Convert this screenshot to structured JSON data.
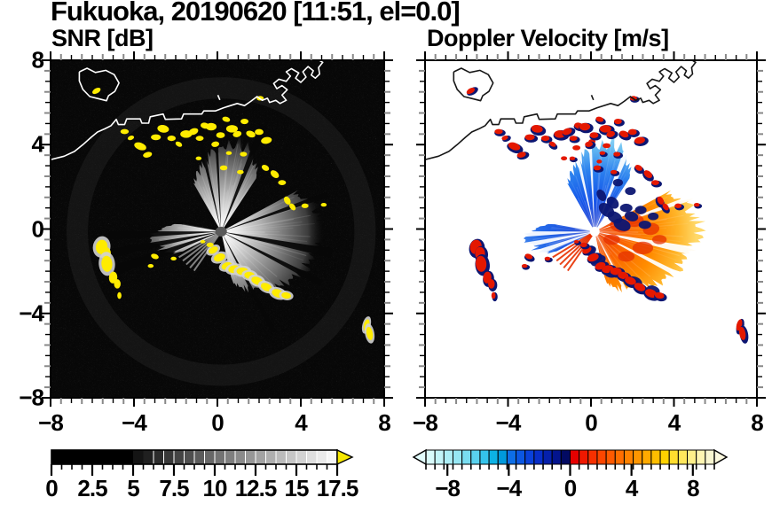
{
  "title": "Fukuoka, 20190620 [11:51, el=0.0]",
  "panels": {
    "left": {
      "title": "SNR [dB]"
    },
    "right": {
      "title": "Doppler Velocity [m/s]"
    }
  },
  "axes": {
    "xlim": [
      -8,
      8
    ],
    "ylim": [
      -8,
      8
    ],
    "major_values": [
      -8,
      -4,
      0,
      4,
      8
    ],
    "x_tick_labels": [
      "−8",
      "−4",
      "0",
      "4",
      "8"
    ],
    "y_values": [
      8,
      4,
      0,
      -4,
      -8
    ],
    "y_tick_labels": [
      "8",
      "4",
      "0",
      "−4",
      "−8"
    ],
    "minor_step": 0.5
  },
  "colorbars": {
    "snr": {
      "min": 0,
      "max": 17.5,
      "segments": 28,
      "black_until": 5,
      "tick_values": [
        0,
        2.5,
        5,
        7.5,
        10,
        12.5,
        15,
        17.5
      ],
      "tick_labels": [
        "0",
        "2.5",
        "5",
        "7.5",
        "10",
        "12.5",
        "15",
        "17.5"
      ],
      "over_color": "#f6e800"
    },
    "vel": {
      "min": -9.4,
      "max": 9.4,
      "segments": 32,
      "tick_values": [
        -8,
        -4,
        0,
        4,
        8
      ],
      "tick_labels": [
        "−8",
        "−4",
        "0",
        "4",
        "8"
      ],
      "under_color": "#e2fdfd",
      "over_color": "#fcf9df",
      "colors": [
        "#d9fbfb",
        "#c3f4f8",
        "#adeef6",
        "#96e7f4",
        "#79ddf1",
        "#59d1ee",
        "#34c3ea",
        "#0cb2e5",
        "#0099dc",
        "#0d6ee6",
        "#0b57e2",
        "#0941da",
        "#072ec9",
        "#0520ac",
        "#03148e",
        "#020a62",
        "#e60000",
        "#ef1800",
        "#f73000",
        "#fc4600",
        "#ff5a00",
        "#ff6e00",
        "#ff8200",
        "#ff9600",
        "#ffaa00",
        "#ffbe00",
        "#ffd200",
        "#ffdd2e",
        "#ffe75c",
        "#ffef8a",
        "#fff5b2",
        "#f9f6d0"
      ]
    }
  },
  "colors": {
    "snr_bg": "#070707",
    "vel_bg": "#ffffff",
    "snr_coast": "#ffffff",
    "vel_coast": "#161616",
    "echo_yellow": "#ffec00",
    "echo_halo": "#d2d2d2",
    "vel_echo_red": "#e41800",
    "vel_echo_navy": "#0c1672",
    "vel_ray_red": "#e83000",
    "snr_ray_gray": "#8e8e8e",
    "snr_center": "#5a5a5a"
  },
  "chart_data": {
    "type": "heatmap",
    "title": "Fukuoka, 20190620 [11:51, el=0.0]",
    "panels": [
      {
        "name": "SNR [dB]",
        "value_range": [
          0,
          17.5
        ],
        "scheme": "black-to-white, over-range yellow"
      },
      {
        "name": "Doppler Velocity [m/s]",
        "value_range": [
          -9.4,
          9.4
        ],
        "scheme": "cyan-blue negative, red-yellow positive"
      }
    ],
    "xlim": [
      -8,
      8
    ],
    "ylim": [
      -8,
      8
    ],
    "radar_center": [
      0.18,
      -0.12
    ],
    "coastline": [
      [
        -8.15,
        3.25
      ],
      [
        -7.35,
        3.45
      ],
      [
        -6.85,
        3.68
      ],
      [
        -6.45,
        4.0
      ],
      [
        -6.05,
        4.35
      ],
      [
        -5.75,
        4.6
      ],
      [
        -5.4,
        4.75
      ],
      [
        -5.1,
        4.9
      ],
      [
        -4.85,
        5.2
      ],
      [
        -4.75,
        4.95
      ],
      [
        -4.45,
        4.95
      ],
      [
        -4.35,
        5.22
      ],
      [
        -3.7,
        5.22
      ],
      [
        -3.62,
        5.02
      ],
      [
        -3.3,
        5.02
      ],
      [
        -3.22,
        5.32
      ],
      [
        -2.6,
        5.45
      ],
      [
        -2.5,
        5.2
      ],
      [
        -1.72,
        5.22
      ],
      [
        -1.62,
        5.45
      ],
      [
        -0.75,
        5.45
      ],
      [
        -0.65,
        5.6
      ],
      [
        -0.1,
        5.6
      ],
      [
        0.3,
        5.75
      ],
      [
        0.95,
        5.95
      ],
      [
        1.3,
        5.85
      ],
      [
        1.6,
        6.05
      ],
      [
        1.9,
        6.28
      ],
      [
        2.15,
        6.1
      ],
      [
        2.4,
        6.2
      ],
      [
        2.5,
        6.0
      ],
      [
        2.8,
        6.1
      ],
      [
        3.0,
        5.95
      ],
      [
        3.3,
        6.1
      ],
      [
        3.1,
        6.35
      ],
      [
        3.35,
        6.6
      ],
      [
        3.1,
        6.8
      ],
      [
        2.85,
        6.65
      ],
      [
        2.7,
        6.9
      ],
      [
        2.95,
        7.1
      ],
      [
        3.3,
        7.0
      ],
      [
        3.5,
        7.25
      ],
      [
        3.3,
        7.45
      ],
      [
        3.55,
        7.6
      ],
      [
        3.9,
        7.4
      ],
      [
        3.75,
        7.15
      ],
      [
        4.0,
        6.95
      ],
      [
        4.25,
        7.2
      ],
      [
        4.1,
        7.45
      ],
      [
        4.35,
        7.7
      ],
      [
        4.6,
        7.5
      ],
      [
        4.5,
        7.3
      ],
      [
        4.7,
        7.15
      ],
      [
        4.9,
        7.35
      ],
      [
        4.85,
        7.65
      ],
      [
        5.05,
        7.9
      ],
      [
        4.8,
        8.05
      ],
      [
        4.85,
        8.3
      ]
    ],
    "island": [
      [
        -6.62,
        7.45
      ],
      [
        -6.25,
        7.62
      ],
      [
        -5.85,
        7.42
      ],
      [
        -5.35,
        7.52
      ],
      [
        -4.95,
        7.32
      ],
      [
        -4.72,
        6.92
      ],
      [
        -4.92,
        6.52
      ],
      [
        -5.22,
        6.32
      ],
      [
        -5.32,
        6.08
      ],
      [
        -5.72,
        6.18
      ],
      [
        -6.12,
        6.28
      ],
      [
        -6.45,
        6.62
      ],
      [
        -6.62,
        7.02
      ],
      [
        -6.62,
        7.45
      ]
    ],
    "speck": [
      [
        0.02,
        6.35
      ],
      [
        0.12,
        6.12
      ]
    ],
    "fans": [
      {
        "name": "north",
        "az0": -30,
        "az1": 34,
        "env": [
          [
            -30,
            2.6
          ],
          [
            -18,
            3.2
          ],
          [
            -5,
            3.8
          ],
          [
            8,
            4.35
          ],
          [
            20,
            4.3
          ],
          [
            28,
            3.6
          ],
          [
            34,
            2.8
          ]
        ],
        "vel_palette": "north"
      },
      {
        "name": "east-southeast",
        "az0": 62,
        "az1": 168,
        "env": [
          [
            62,
            4.2
          ],
          [
            75,
            4.9
          ],
          [
            88,
            5.1
          ],
          [
            100,
            4.6
          ],
          [
            115,
            4.3
          ],
          [
            130,
            3.9
          ],
          [
            145,
            3.3
          ],
          [
            158,
            2.9
          ],
          [
            168,
            2.4
          ]
        ],
        "vel_palette": "se"
      },
      {
        "name": "west",
        "az0": 243,
        "az1": 281,
        "env": [
          [
            243,
            2.2
          ],
          [
            252,
            2.9
          ],
          [
            262,
            3.3
          ],
          [
            270,
            3.2
          ],
          [
            276,
            2.6
          ],
          [
            281,
            2.0
          ]
        ],
        "vel_palette": "west"
      }
    ],
    "thin_rays": {
      "az_list": [
        215,
        221,
        227,
        233,
        239
      ],
      "r": 2.5
    },
    "shadows": [
      {
        "az": -13,
        "w": 1.3
      },
      {
        "az": -3,
        "w": 1.0
      },
      {
        "az": 22,
        "w": 2.0
      },
      {
        "az": 71,
        "w": 1.4
      },
      {
        "az": 101,
        "w": 2.4
      },
      {
        "az": 117,
        "w": 1.6
      },
      {
        "az": 152,
        "w": 1.4
      },
      {
        "az": 250,
        "w": 2.6
      },
      {
        "az": 259,
        "w": 2.2
      },
      {
        "az": 268,
        "w": 2.2
      }
    ],
    "fan_palettes": {
      "snr": {
        "stops": [
          "#ffffff",
          "#e8e8e8",
          "#b4b4b4",
          "#787878",
          "#3c3c3c",
          "#141414"
        ],
        "offs": [
          0,
          0.15,
          0.38,
          0.62,
          0.85,
          1
        ]
      },
      "north": {
        "stops": [
          "#0a28c8",
          "#1150e8",
          "#2b80ee",
          "#6cc0f2",
          "#a6e2f8"
        ],
        "offs": [
          0,
          0.3,
          0.6,
          0.85,
          1
        ]
      },
      "se": {
        "stops": [
          "#ee3c00",
          "#fa6400",
          "#ff8c00",
          "#ffb428",
          "#ffd868"
        ],
        "offs": [
          0,
          0.3,
          0.6,
          0.82,
          1
        ]
      },
      "west": {
        "stops": [
          "#0a30d0",
          "#2468e8",
          "#5aa0f0"
        ],
        "offs": [
          0,
          0.5,
          1
        ]
      }
    },
    "echo_blobs": [
      [
        -5.8,
        6.55,
        0.22,
        0.12,
        -30,
        0
      ],
      [
        -4.45,
        4.62,
        0.2,
        0.12,
        0,
        0
      ],
      [
        -4.15,
        4.32,
        0.16,
        0.1,
        -20,
        0
      ],
      [
        -3.7,
        3.92,
        0.3,
        0.17,
        20,
        0
      ],
      [
        -3.35,
        3.52,
        0.22,
        0.13,
        -15,
        0
      ],
      [
        -2.95,
        4.35,
        0.24,
        0.14,
        0,
        0
      ],
      [
        -2.6,
        4.75,
        0.28,
        0.18,
        10,
        0
      ],
      [
        -2.2,
        4.3,
        0.2,
        0.13,
        0,
        0
      ],
      [
        -1.85,
        4.02,
        0.17,
        0.11,
        30,
        0
      ],
      [
        -1.5,
        4.5,
        0.28,
        0.18,
        0,
        0
      ],
      [
        -1.15,
        4.62,
        0.24,
        0.15,
        -20,
        0
      ],
      [
        -0.85,
        4.3,
        0.19,
        0.12,
        0,
        0
      ],
      [
        -0.9,
        3.35,
        0.14,
        0.09,
        0,
        0
      ],
      [
        -0.6,
        4.9,
        0.21,
        0.14,
        10,
        0
      ],
      [
        -0.3,
        4.85,
        0.26,
        0.18,
        0,
        0
      ],
      [
        -0.1,
        4.02,
        0.19,
        0.13,
        -10,
        0
      ],
      [
        0.15,
        4.45,
        0.21,
        0.14,
        0,
        0
      ],
      [
        0.42,
        5.2,
        0.19,
        0.12,
        15,
        0
      ],
      [
        0.55,
        3.6,
        0.14,
        0.09,
        0,
        0
      ],
      [
        0.7,
        4.75,
        0.28,
        0.18,
        0,
        0
      ],
      [
        0.95,
        4.5,
        0.21,
        0.14,
        -15,
        0
      ],
      [
        1.25,
        3.55,
        0.17,
        0.11,
        0,
        0
      ],
      [
        1.3,
        5.1,
        0.19,
        0.13,
        0,
        0
      ],
      [
        1.6,
        4.5,
        0.23,
        0.15,
        20,
        0
      ],
      [
        2.0,
        4.6,
        0.21,
        0.14,
        0,
        0
      ],
      [
        2.05,
        6.2,
        0.17,
        0.11,
        0,
        0
      ],
      [
        2.35,
        4.2,
        0.26,
        0.16,
        -10,
        0
      ],
      [
        0.3,
        2.9,
        0.18,
        0.12,
        0,
        0
      ],
      [
        1.1,
        2.7,
        0.16,
        0.1,
        0,
        0
      ],
      [
        2.3,
        2.9,
        0.19,
        0.13,
        30,
        0
      ],
      [
        2.75,
        2.6,
        0.23,
        0.15,
        40,
        0
      ],
      [
        3.1,
        2.2,
        0.19,
        0.12,
        0,
        0
      ],
      [
        3.35,
        1.35,
        0.21,
        0.14,
        60,
        0
      ],
      [
        3.6,
        1.05,
        0.19,
        0.12,
        50,
        0
      ],
      [
        4.2,
        1.1,
        0.17,
        0.11,
        0,
        0
      ],
      [
        5.1,
        1.15,
        0.14,
        0.09,
        0,
        0
      ],
      [
        -0.2,
        -1.0,
        0.24,
        0.15,
        -30,
        1
      ],
      [
        0.1,
        -1.35,
        0.28,
        0.18,
        -20,
        1
      ],
      [
        0.45,
        -1.75,
        0.26,
        0.17,
        -20,
        1
      ],
      [
        0.8,
        -1.9,
        0.28,
        0.18,
        -10,
        1
      ],
      [
        1.2,
        -2.0,
        0.28,
        0.18,
        0,
        1
      ],
      [
        1.55,
        -2.2,
        0.26,
        0.17,
        10,
        1
      ],
      [
        1.9,
        -2.45,
        0.28,
        0.18,
        20,
        1
      ],
      [
        2.35,
        -2.75,
        0.28,
        0.18,
        25,
        1
      ],
      [
        2.9,
        -3.05,
        0.3,
        0.19,
        20,
        1
      ],
      [
        3.3,
        -3.15,
        0.23,
        0.15,
        10,
        1
      ],
      [
        -0.35,
        -0.75,
        0.17,
        0.11,
        0,
        0
      ],
      [
        -0.7,
        -0.6,
        0.12,
        0.08,
        0,
        0
      ],
      [
        -2.1,
        -1.4,
        0.14,
        0.09,
        0,
        0
      ],
      [
        -3.0,
        -1.3,
        0.19,
        0.12,
        20,
        0
      ],
      [
        -3.2,
        -1.75,
        0.14,
        0.09,
        0,
        0
      ],
      [
        -5.55,
        -0.85,
        0.28,
        0.34,
        10,
        1
      ],
      [
        -5.35,
        -1.15,
        0.24,
        0.3,
        0,
        0
      ],
      [
        -5.3,
        -1.65,
        0.26,
        0.38,
        -5,
        1
      ],
      [
        -5.0,
        -2.3,
        0.2,
        0.28,
        5,
        0
      ],
      [
        -4.8,
        -2.6,
        0.16,
        0.22,
        0,
        0
      ],
      [
        -4.7,
        -3.15,
        0.1,
        0.16,
        0,
        0
      ],
      [
        7.15,
        -4.55,
        0.13,
        0.28,
        15,
        1
      ],
      [
        7.3,
        -4.95,
        0.15,
        0.32,
        -10,
        1
      ]
    ],
    "alias_patches": [
      [
        0.75,
        0.9,
        0.42,
        0.28,
        40
      ],
      [
        1.15,
        0.55,
        0.38,
        0.26,
        30
      ],
      [
        1.5,
        0.2,
        0.42,
        0.28,
        20
      ],
      [
        1.05,
        1.25,
        0.33,
        0.24,
        45
      ],
      [
        1.7,
        1.0,
        0.3,
        0.2,
        0
      ],
      [
        0.5,
        1.6,
        0.3,
        0.2,
        60
      ],
      [
        1.95,
        0.6,
        0.33,
        0.23,
        15
      ],
      [
        2.4,
        0.9,
        0.28,
        0.2,
        0
      ],
      [
        1.3,
        2.2,
        0.24,
        0.18,
        0
      ],
      [
        1.9,
        1.8,
        0.26,
        0.19,
        0
      ],
      [
        0.35,
        -1.5,
        0.38,
        0.24,
        -25
      ],
      [
        1.0,
        -2.1,
        0.33,
        0.21,
        0
      ],
      [
        2.1,
        -2.5,
        0.38,
        0.24,
        20
      ],
      [
        3.0,
        -2.9,
        0.33,
        0.21,
        20
      ],
      [
        0.0,
        -1.05,
        0.28,
        0.19,
        -40
      ],
      [
        2.6,
        0.2,
        0.3,
        0.2,
        0
      ],
      [
        3.0,
        0.6,
        0.26,
        0.18,
        0
      ]
    ],
    "red_flecks": [
      [
        -0.7,
        3.85,
        0.19,
        0.12
      ],
      [
        0.05,
        4.15,
        0.17,
        0.11
      ],
      [
        0.75,
        3.95,
        0.19,
        0.12
      ],
      [
        -1.3,
        3.35,
        0.15,
        0.1
      ],
      [
        1.35,
        3.5,
        0.17,
        0.11
      ],
      [
        0.4,
        3.2,
        0.13,
        0.09
      ]
    ],
    "red_patches": [
      [
        1.4,
        0.15,
        0.5,
        0.3,
        10
      ],
      [
        2.1,
        0.4,
        0.45,
        0.3,
        0
      ],
      [
        2.9,
        0.0,
        0.4,
        0.28,
        -10
      ],
      [
        1.0,
        -0.5,
        0.4,
        0.25,
        0
      ],
      [
        2.5,
        -0.9,
        0.5,
        0.3,
        0
      ],
      [
        3.3,
        -0.5,
        0.35,
        0.22,
        0
      ],
      [
        1.7,
        -1.3,
        0.4,
        0.25,
        0
      ]
    ]
  }
}
